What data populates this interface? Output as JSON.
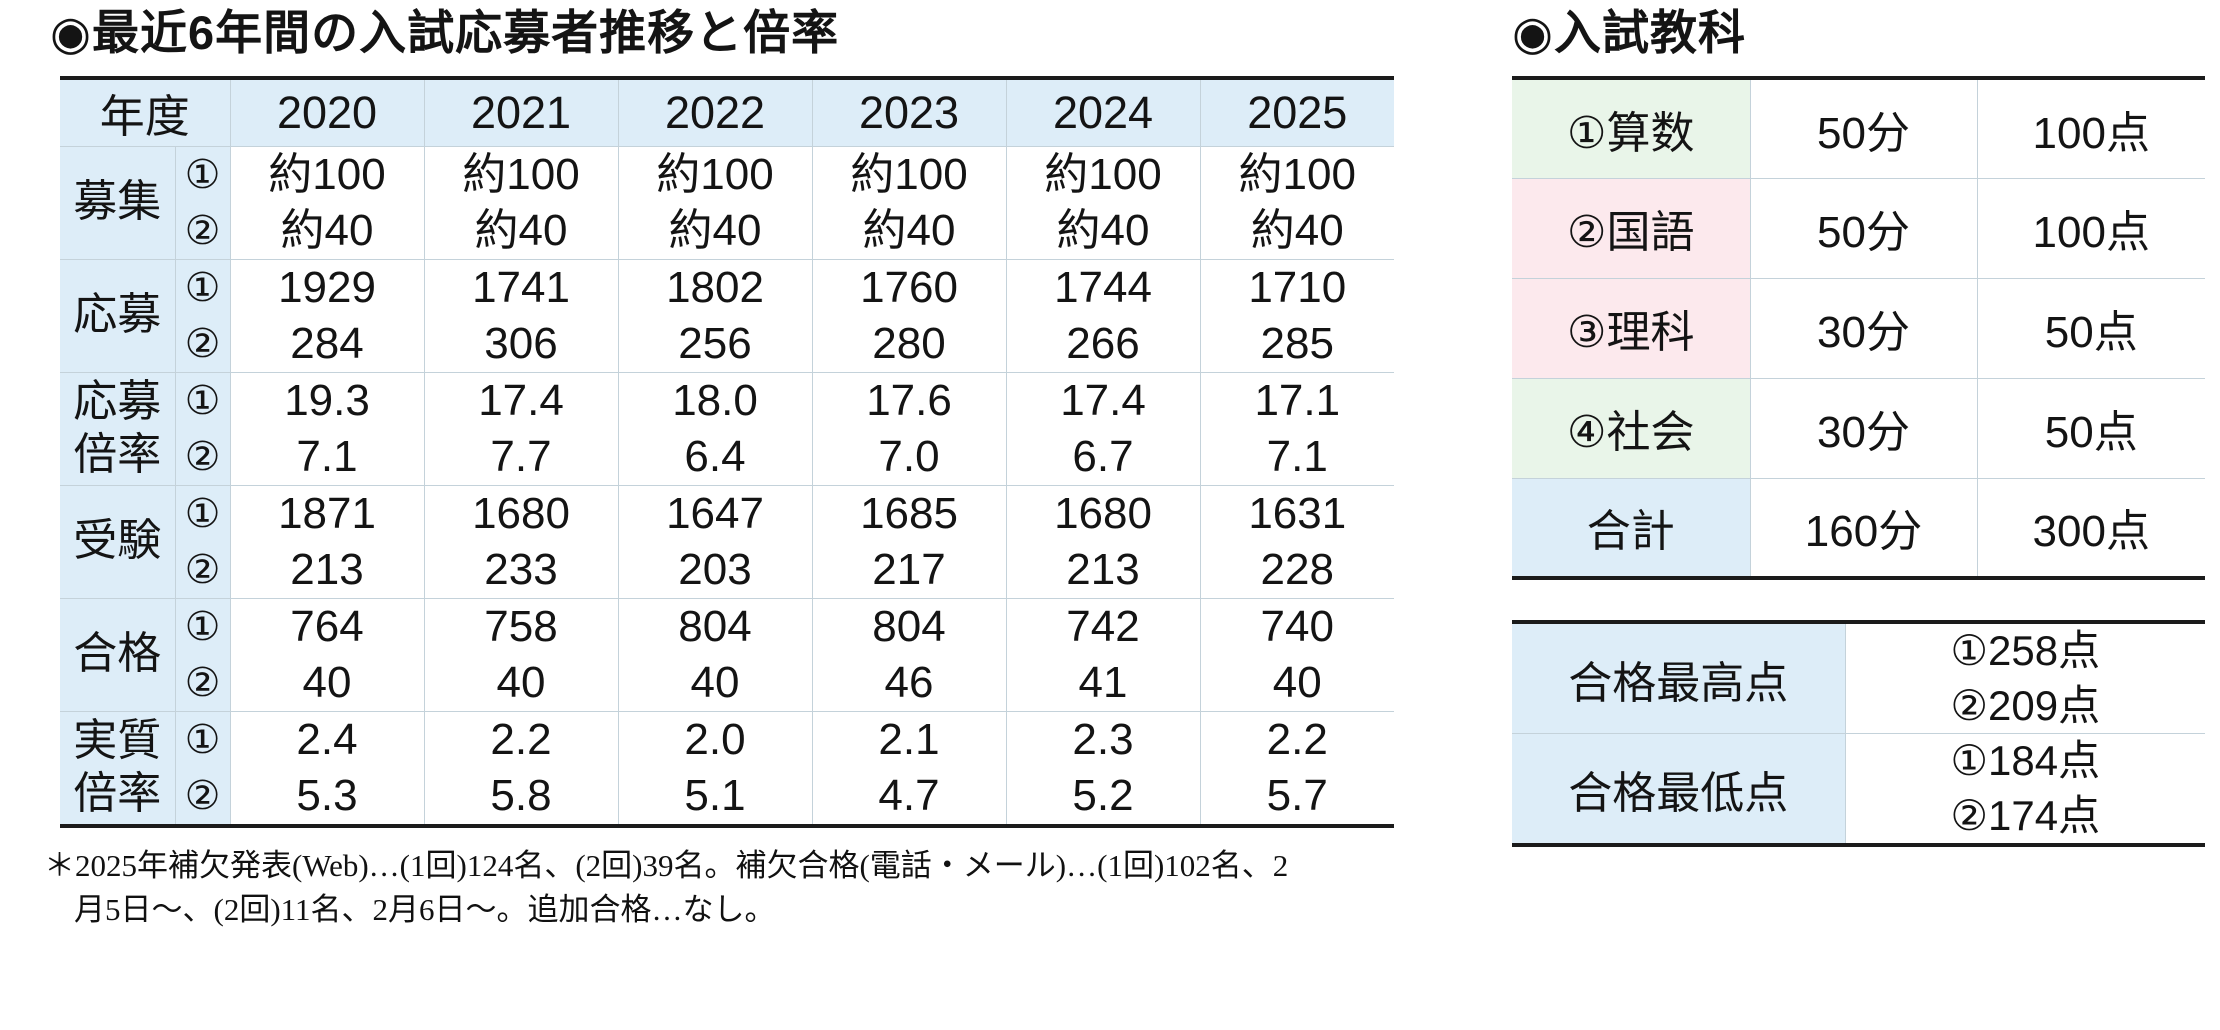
{
  "left_section": {
    "title": "◉最近6年間の入試応募者推移と倍率",
    "table": {
      "year_header_label": "年度",
      "years": [
        "2020",
        "2021",
        "2022",
        "2023",
        "2024",
        "2025"
      ],
      "round_marks": [
        "①",
        "②"
      ],
      "rows": [
        {
          "label_lines": [
            "募集"
          ],
          "values": [
            [
              "約100",
              "約40"
            ],
            [
              "約100",
              "約40"
            ],
            [
              "約100",
              "約40"
            ],
            [
              "約100",
              "約40"
            ],
            [
              "約100",
              "約40"
            ],
            [
              "約100",
              "約40"
            ]
          ]
        },
        {
          "label_lines": [
            "応募"
          ],
          "values": [
            [
              "1929",
              "284"
            ],
            [
              "1741",
              "306"
            ],
            [
              "1802",
              "256"
            ],
            [
              "1760",
              "280"
            ],
            [
              "1744",
              "266"
            ],
            [
              "1710",
              "285"
            ]
          ]
        },
        {
          "label_lines": [
            "応募",
            "倍率"
          ],
          "values": [
            [
              "19.3",
              "7.1"
            ],
            [
              "17.4",
              "7.7"
            ],
            [
              "18.0",
              "6.4"
            ],
            [
              "17.6",
              "7.0"
            ],
            [
              "17.4",
              "6.7"
            ],
            [
              "17.1",
              "7.1"
            ]
          ]
        },
        {
          "label_lines": [
            "受験"
          ],
          "values": [
            [
              "1871",
              "213"
            ],
            [
              "1680",
              "233"
            ],
            [
              "1647",
              "203"
            ],
            [
              "1685",
              "217"
            ],
            [
              "1680",
              "213"
            ],
            [
              "1631",
              "228"
            ]
          ]
        },
        {
          "label_lines": [
            "合格"
          ],
          "values": [
            [
              "764",
              "40"
            ],
            [
              "758",
              "40"
            ],
            [
              "804",
              "40"
            ],
            [
              "804",
              "46"
            ],
            [
              "742",
              "41"
            ],
            [
              "740",
              "40"
            ]
          ]
        },
        {
          "label_lines": [
            "実質",
            "倍率"
          ],
          "values": [
            [
              "2.4",
              "5.3"
            ],
            [
              "2.2",
              "5.8"
            ],
            [
              "2.0",
              "5.1"
            ],
            [
              "2.1",
              "4.7"
            ],
            [
              "2.3",
              "5.2"
            ],
            [
              "2.2",
              "5.7"
            ]
          ]
        }
      ]
    },
    "footnote_lines": [
      "＊2025年補欠発表(Web)…(1回)124名、(2回)39名。補欠合格(電話・メール)…(1回)102名、2",
      "月5日～、(2回)11名、2月6日～。追加合格…なし。"
    ]
  },
  "right_section": {
    "title": "◉入試教科",
    "subjects_table": {
      "rows": [
        {
          "subject": "①算数",
          "time": "50分",
          "points": "100点",
          "bg": "green"
        },
        {
          "subject": "②国語",
          "time": "50分",
          "points": "100点",
          "bg": "pink"
        },
        {
          "subject": "③理科",
          "time": "30分",
          "points": "50点",
          "bg": "pink"
        },
        {
          "subject": "④社会",
          "time": "30分",
          "points": "50点",
          "bg": "green"
        },
        {
          "subject": "合計",
          "time": "160分",
          "points": "300点",
          "bg": "blue"
        }
      ]
    },
    "scores_table": {
      "rows": [
        {
          "label": "合格最高点",
          "value_lines": [
            "①258点",
            "②209点"
          ]
        },
        {
          "label": "合格最低点",
          "value_lines": [
            "①184点",
            "②174点"
          ]
        }
      ]
    }
  },
  "colors": {
    "header_blue": "#ddedf8",
    "subject_green": "#e9f5e9",
    "subject_pink": "#fce9ed",
    "total_blue": "#ddedf8",
    "thick_border": "#1b1b1b",
    "grid_line": "#c4d2da"
  }
}
